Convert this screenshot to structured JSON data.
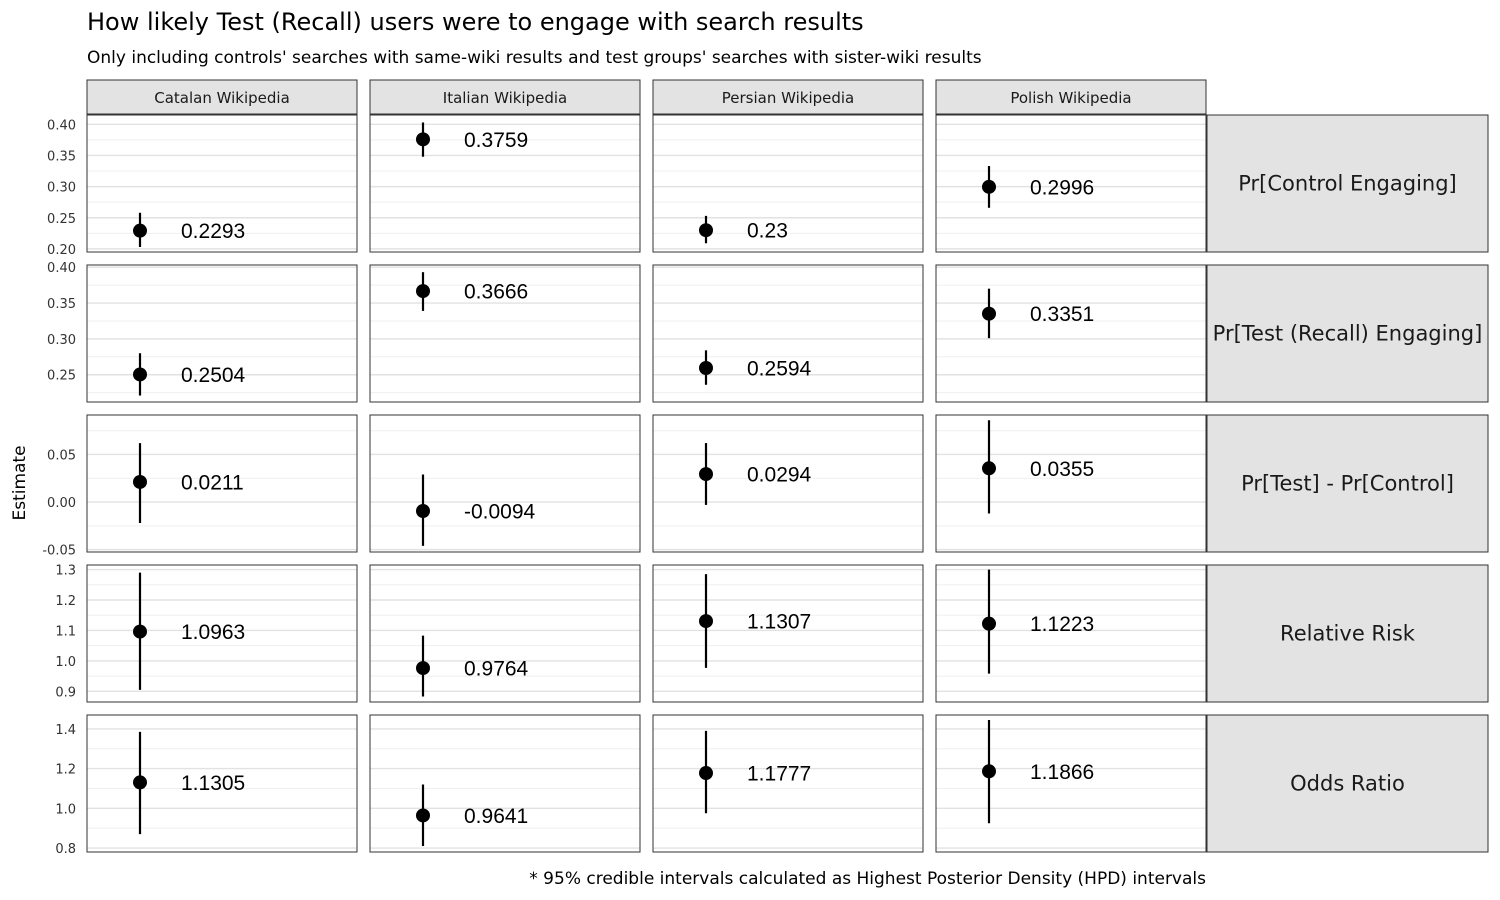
{
  "chart_data": {
    "type": "scatter",
    "subtype": "faceted point-range (estimate with 95% credible interval)",
    "title": "How likely Test (Recall) users were to engage with search results",
    "subtitle": "Only including controls' searches with same-wiki results and test groups' searches with sister-wiki results",
    "ylabel": "Estimate",
    "caption": "* 95% credible intervals calculated as Highest Posterior Density (HPD) intervals",
    "columns": [
      "Catalan Wikipedia",
      "Italian Wikipedia",
      "Persian Wikipedia",
      "Polish Wikipedia"
    ],
    "rows": [
      {
        "label": "Pr[Control Engaging]",
        "ylim": [
          0.195,
          0.415
        ],
        "ticks": [
          0.2,
          0.25,
          0.3,
          0.35,
          0.4
        ],
        "tick_labels": [
          "0.20",
          "0.25",
          "0.30",
          "0.35",
          "0.40"
        ],
        "points": [
          {
            "estimate": 0.2293,
            "lower": 0.203,
            "upper": 0.258,
            "label": "0.2293"
          },
          {
            "estimate": 0.3759,
            "lower": 0.348,
            "upper": 0.403,
            "label": "0.3759"
          },
          {
            "estimate": 0.23,
            "lower": 0.209,
            "upper": 0.253,
            "label": "0.23"
          },
          {
            "estimate": 0.2996,
            "lower": 0.266,
            "upper": 0.333,
            "label": "0.2996"
          }
        ]
      },
      {
        "label": "Pr[Test (Recall) Engaging]",
        "ylim": [
          0.212,
          0.403
        ],
        "ticks": [
          0.25,
          0.3,
          0.35,
          0.4
        ],
        "tick_labels": [
          "0.25",
          "0.30",
          "0.35",
          "0.40"
        ],
        "points": [
          {
            "estimate": 0.2504,
            "lower": 0.221,
            "upper": 0.28,
            "label": "0.2504"
          },
          {
            "estimate": 0.3666,
            "lower": 0.339,
            "upper": 0.393,
            "label": "0.3666"
          },
          {
            "estimate": 0.2594,
            "lower": 0.236,
            "upper": 0.284,
            "label": "0.2594"
          },
          {
            "estimate": 0.3351,
            "lower": 0.301,
            "upper": 0.37,
            "label": "0.3351"
          }
        ]
      },
      {
        "label": "Pr[Test] - Pr[Control]",
        "ylim": [
          -0.0525,
          0.0915
        ],
        "ticks": [
          -0.05,
          0.0,
          0.05
        ],
        "tick_labels": [
          "-0.05",
          "0.00",
          "0.05"
        ],
        "points": [
          {
            "estimate": 0.0211,
            "lower": -0.022,
            "upper": 0.062,
            "label": "0.0211"
          },
          {
            "estimate": -0.0094,
            "lower": -0.046,
            "upper": 0.029,
            "label": "-0.0094"
          },
          {
            "estimate": 0.0294,
            "lower": -0.003,
            "upper": 0.062,
            "label": "0.0294"
          },
          {
            "estimate": 0.0355,
            "lower": -0.012,
            "upper": 0.086,
            "label": "0.0355"
          }
        ]
      },
      {
        "label": "Relative Risk",
        "ylim": [
          0.865,
          1.315
        ],
        "ticks": [
          0.9,
          1.0,
          1.1,
          1.2,
          1.3
        ],
        "tick_labels": [
          "0.9",
          "1.0",
          "1.1",
          "1.2",
          "1.3"
        ],
        "points": [
          {
            "estimate": 1.0963,
            "lower": 0.905,
            "upper": 1.29,
            "label": "1.0963"
          },
          {
            "estimate": 0.9764,
            "lower": 0.883,
            "upper": 1.083,
            "label": "0.9764"
          },
          {
            "estimate": 1.1307,
            "lower": 0.977,
            "upper": 1.285,
            "label": "1.1307"
          },
          {
            "estimate": 1.1223,
            "lower": 0.958,
            "upper": 1.3,
            "label": "1.1223"
          }
        ]
      },
      {
        "label": "Odds Ratio",
        "ylim": [
          0.78,
          1.47
        ],
        "ticks": [
          0.8,
          1.0,
          1.2,
          1.4
        ],
        "tick_labels": [
          "0.8",
          "1.0",
          "1.2",
          "1.4"
        ],
        "points": [
          {
            "estimate": 1.1305,
            "lower": 0.87,
            "upper": 1.385,
            "label": "1.1305"
          },
          {
            "estimate": 0.9641,
            "lower": 0.81,
            "upper": 1.12,
            "label": "0.9641"
          },
          {
            "estimate": 1.1777,
            "lower": 0.975,
            "upper": 1.39,
            "label": "1.1777"
          },
          {
            "estimate": 1.1866,
            "lower": 0.925,
            "upper": 1.445,
            "label": "1.1866"
          }
        ]
      }
    ],
    "grid": true,
    "legend": "none"
  }
}
